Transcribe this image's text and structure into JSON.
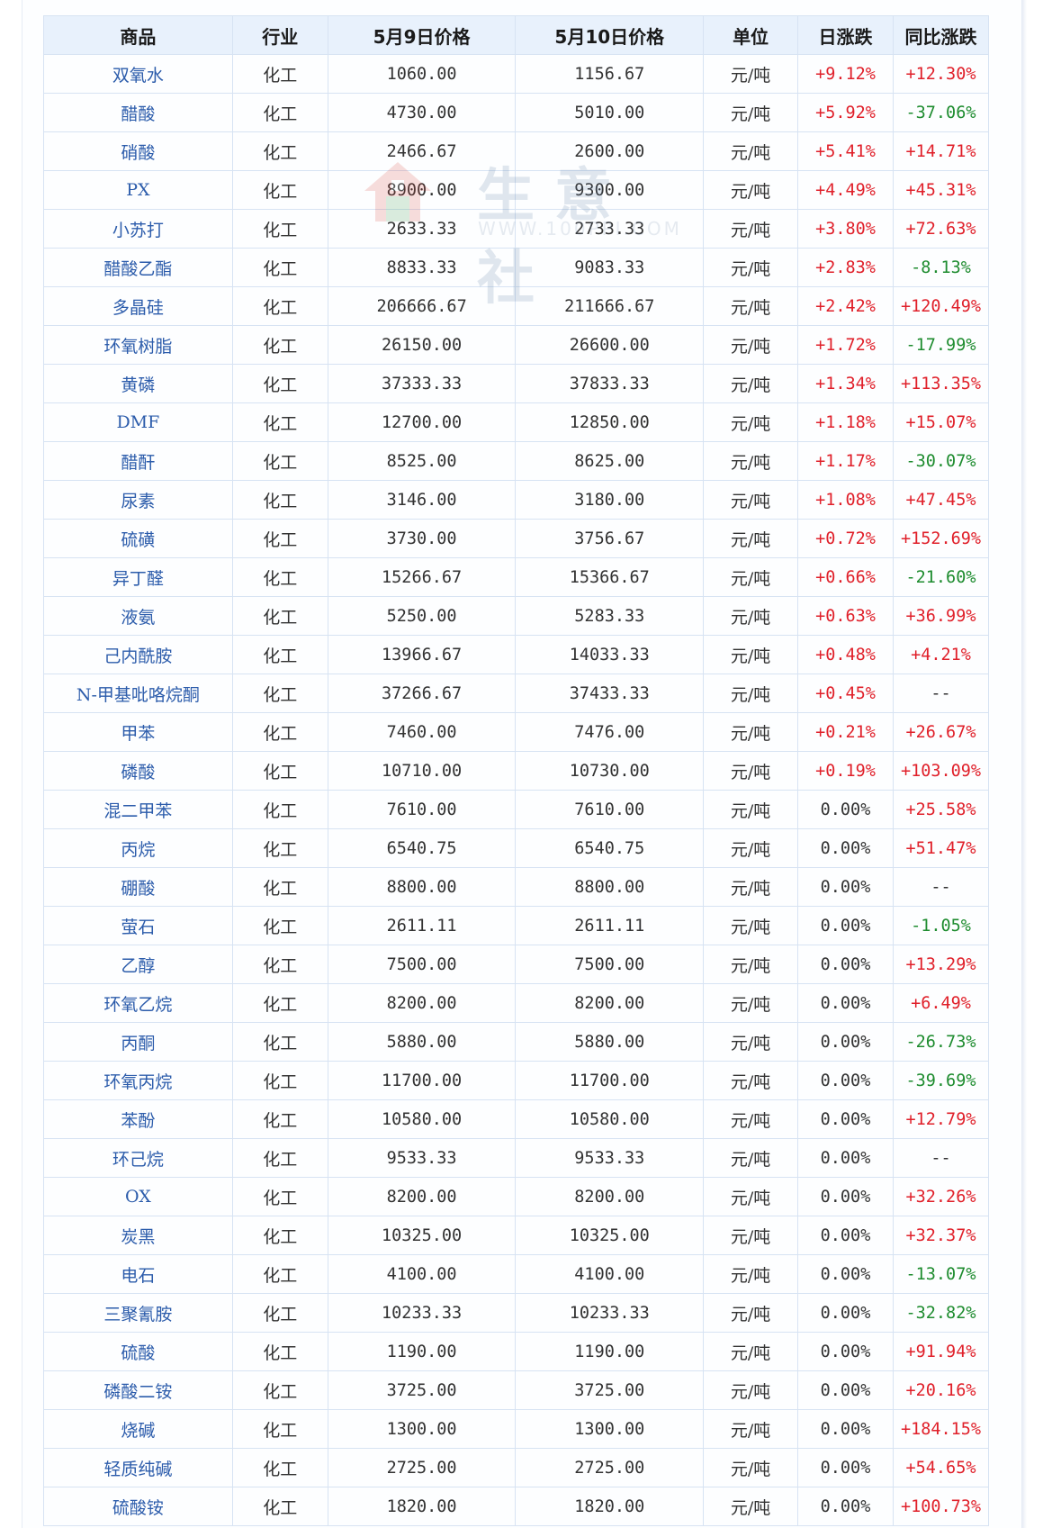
{
  "watermark": {
    "text": "生意社",
    "url": "WWW.100PPI.COM"
  },
  "table": {
    "headers": [
      "商品",
      "行业",
      "5月9日价格",
      "5月10日价格",
      "单位",
      "日涨跌",
      "同比涨跌"
    ],
    "rows": [
      [
        "双氧水",
        "化工",
        "1060.00",
        "1156.67",
        "元/吨",
        "+9.12%",
        "+12.30%"
      ],
      [
        "醋酸",
        "化工",
        "4730.00",
        "5010.00",
        "元/吨",
        "+5.92%",
        "-37.06%"
      ],
      [
        "硝酸",
        "化工",
        "2466.67",
        "2600.00",
        "元/吨",
        "+5.41%",
        "+14.71%"
      ],
      [
        "PX",
        "化工",
        "8900.00",
        "9300.00",
        "元/吨",
        "+4.49%",
        "+45.31%"
      ],
      [
        "小苏打",
        "化工",
        "2633.33",
        "2733.33",
        "元/吨",
        "+3.80%",
        "+72.63%"
      ],
      [
        "醋酸乙酯",
        "化工",
        "8833.33",
        "9083.33",
        "元/吨",
        "+2.83%",
        "-8.13%"
      ],
      [
        "多晶硅",
        "化工",
        "206666.67",
        "211666.67",
        "元/吨",
        "+2.42%",
        "+120.49%"
      ],
      [
        "环氧树脂",
        "化工",
        "26150.00",
        "26600.00",
        "元/吨",
        "+1.72%",
        "-17.99%"
      ],
      [
        "黄磷",
        "化工",
        "37333.33",
        "37833.33",
        "元/吨",
        "+1.34%",
        "+113.35%"
      ],
      [
        "DMF",
        "化工",
        "12700.00",
        "12850.00",
        "元/吨",
        "+1.18%",
        "+15.07%"
      ],
      [
        "醋酐",
        "化工",
        "8525.00",
        "8625.00",
        "元/吨",
        "+1.17%",
        "-30.07%"
      ],
      [
        "尿素",
        "化工",
        "3146.00",
        "3180.00",
        "元/吨",
        "+1.08%",
        "+47.45%"
      ],
      [
        "硫磺",
        "化工",
        "3730.00",
        "3756.67",
        "元/吨",
        "+0.72%",
        "+152.69%"
      ],
      [
        "异丁醛",
        "化工",
        "15266.67",
        "15366.67",
        "元/吨",
        "+0.66%",
        "-21.60%"
      ],
      [
        "液氨",
        "化工",
        "5250.00",
        "5283.33",
        "元/吨",
        "+0.63%",
        "+36.99%"
      ],
      [
        "己内酰胺",
        "化工",
        "13966.67",
        "14033.33",
        "元/吨",
        "+0.48%",
        "+4.21%"
      ],
      [
        "N-甲基吡咯烷酮",
        "化工",
        "37266.67",
        "37433.33",
        "元/吨",
        "+0.45%",
        "--"
      ],
      [
        "甲苯",
        "化工",
        "7460.00",
        "7476.00",
        "元/吨",
        "+0.21%",
        "+26.67%"
      ],
      [
        "磷酸",
        "化工",
        "10710.00",
        "10730.00",
        "元/吨",
        "+0.19%",
        "+103.09%"
      ],
      [
        "混二甲苯",
        "化工",
        "7610.00",
        "7610.00",
        "元/吨",
        "0.00%",
        "+25.58%"
      ],
      [
        "丙烷",
        "化工",
        "6540.75",
        "6540.75",
        "元/吨",
        "0.00%",
        "+51.47%"
      ],
      [
        "硼酸",
        "化工",
        "8800.00",
        "8800.00",
        "元/吨",
        "0.00%",
        "--"
      ],
      [
        "萤石",
        "化工",
        "2611.11",
        "2611.11",
        "元/吨",
        "0.00%",
        "-1.05%"
      ],
      [
        "乙醇",
        "化工",
        "7500.00",
        "7500.00",
        "元/吨",
        "0.00%",
        "+13.29%"
      ],
      [
        "环氧乙烷",
        "化工",
        "8200.00",
        "8200.00",
        "元/吨",
        "0.00%",
        "+6.49%"
      ],
      [
        "丙酮",
        "化工",
        "5880.00",
        "5880.00",
        "元/吨",
        "0.00%",
        "-26.73%"
      ],
      [
        "环氧丙烷",
        "化工",
        "11700.00",
        "11700.00",
        "元/吨",
        "0.00%",
        "-39.69%"
      ],
      [
        "苯酚",
        "化工",
        "10580.00",
        "10580.00",
        "元/吨",
        "0.00%",
        "+12.79%"
      ],
      [
        "环己烷",
        "化工",
        "9533.33",
        "9533.33",
        "元/吨",
        "0.00%",
        "--"
      ],
      [
        "OX",
        "化工",
        "8200.00",
        "8200.00",
        "元/吨",
        "0.00%",
        "+32.26%"
      ],
      [
        "炭黑",
        "化工",
        "10325.00",
        "10325.00",
        "元/吨",
        "0.00%",
        "+32.37%"
      ],
      [
        "电石",
        "化工",
        "4100.00",
        "4100.00",
        "元/吨",
        "0.00%",
        "-13.07%"
      ],
      [
        "三聚氰胺",
        "化工",
        "10233.33",
        "10233.33",
        "元/吨",
        "0.00%",
        "-32.82%"
      ],
      [
        "硫酸",
        "化工",
        "1190.00",
        "1190.00",
        "元/吨",
        "0.00%",
        "+91.94%"
      ],
      [
        "磷酸二铵",
        "化工",
        "3725.00",
        "3725.00",
        "元/吨",
        "0.00%",
        "+20.16%"
      ],
      [
        "烧碱",
        "化工",
        "1300.00",
        "1300.00",
        "元/吨",
        "0.00%",
        "+184.15%"
      ],
      [
        "轻质纯碱",
        "化工",
        "2725.00",
        "2725.00",
        "元/吨",
        "0.00%",
        "+54.65%"
      ],
      [
        "硫酸铵",
        "化工",
        "1820.00",
        "1820.00",
        "元/吨",
        "0.00%",
        "+100.73%"
      ]
    ]
  },
  "colors": {
    "up": "#e0202a",
    "down": "#1e8c2f",
    "header_bg": "#e8f1fc",
    "name_link": "#2c5cab",
    "border": "#d7e3f3"
  }
}
